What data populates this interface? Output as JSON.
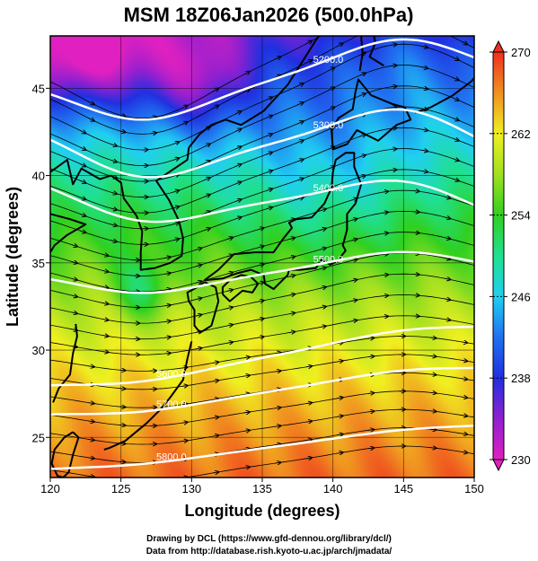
{
  "title": "MSM 18Z06Jan2026 (500.0hPa)",
  "xlabel": "Longitude (degrees)",
  "ylabel": "Latitude  (degrees)",
  "x_ticks": [
    "120",
    "125",
    "130",
    "135",
    "140",
    "145",
    "150"
  ],
  "y_ticks": [
    "25",
    "30",
    "35",
    "40",
    "45"
  ],
  "colorbar": {
    "min": 230,
    "max": 270,
    "ticks": [
      "230",
      "238",
      "246",
      "254",
      "262",
      "270"
    ],
    "colors": [
      "#e020c0",
      "#9020d0",
      "#2030e0",
      "#2070f0",
      "#20d0f0",
      "#20e090",
      "#30d020",
      "#a0e020",
      "#f0f020",
      "#f09020",
      "#f03020"
    ]
  },
  "contours": [
    {
      "label": "5200.0",
      "lat_west": 45.5,
      "lat_east": 45.5,
      "amp": 2.3
    },
    {
      "label": "5300.0",
      "lat_west": 43.0,
      "lat_east": 40.8,
      "amp": 2.6
    },
    {
      "label": "5400.0",
      "lat_west": 40.0,
      "lat_east": 37.2,
      "amp": 2.0
    },
    {
      "label": "5500.0",
      "lat_west": 34.5,
      "lat_east": 34.4,
      "amp": 1.2
    },
    {
      "label": "5600.0",
      "lat_west": 28.2,
      "lat_east": 31.0,
      "amp": 0.6
    },
    {
      "label": "5700.0",
      "lat_west": 26.5,
      "lat_east": 28.7,
      "amp": 0.5
    },
    {
      "label": "5800.0",
      "lat_west": 23.3,
      "lat_east": 25.5,
      "amp": 0.3
    }
  ],
  "footer": {
    "line1": "Drawing by DCL (https://www.gfd-dennou.org/library/dcl/)",
    "line2": "Data from http://database.rish.kyoto-u.ac.jp/arch/jmadata/"
  }
}
